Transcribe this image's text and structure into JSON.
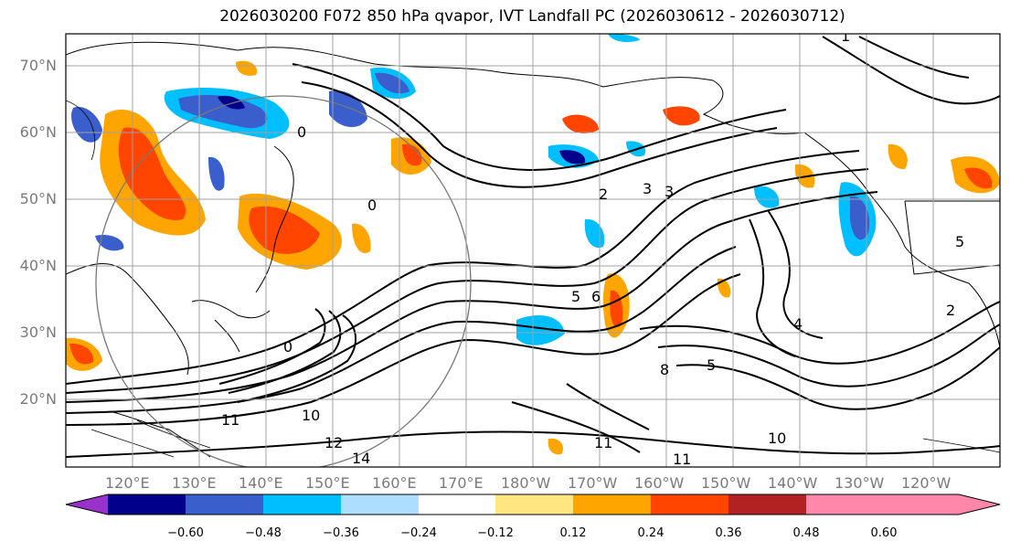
{
  "title": "2026030200 F072 850 hPa qvapor, IVT Landfall PC (2026030612 - 2026030712)",
  "lat_labels": [
    "70°N",
    "60°N",
    "50°N",
    "40°N",
    "30°N",
    "20°N"
  ],
  "lon_labels": [
    "120°E",
    "130°E",
    "140°E",
    "150°E",
    "160°E",
    "170°E",
    "180°W",
    "170°W",
    "160°W",
    "150°W",
    "140°W",
    "130°W",
    "120°W"
  ],
  "contour_labels": [
    "0",
    "1",
    "2",
    "3",
    "3",
    "4",
    "5",
    "5",
    "6",
    "8",
    "10",
    "10",
    "11",
    "11",
    "11",
    "12",
    "14",
    "2",
    "0",
    "0",
    "5"
  ],
  "colorbar": {
    "ticks": [
      "−0.60",
      "−0.48",
      "−0.36",
      "−0.24",
      "−0.12",
      "0.12",
      "0.24",
      "0.36",
      "0.48",
      "0.60"
    ],
    "colors": [
      "#9932CC",
      "#00008B",
      "#3A5FCD",
      "#00BFFF",
      "#ADDEFF",
      "#FFFFFF",
      "#FFE680",
      "#FFA500",
      "#FF4500",
      "#B22222",
      "#FF88AA"
    ]
  }
}
